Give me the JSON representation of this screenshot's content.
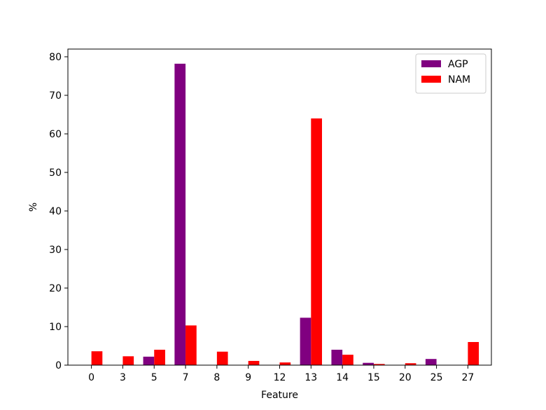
{
  "chart_data": {
    "type": "bar",
    "xlabel": "Feature",
    "ylabel": "%",
    "ylim": [
      0,
      82
    ],
    "yticks": [
      0,
      10,
      20,
      30,
      40,
      50,
      60,
      70,
      80
    ],
    "categories": [
      "0",
      "3",
      "5",
      "7",
      "8",
      "9",
      "12",
      "13",
      "14",
      "15",
      "20",
      "25",
      "27"
    ],
    "series": [
      {
        "name": "AGP",
        "color": "#800080",
        "values": [
          0,
          0,
          2.2,
          78.2,
          0,
          0,
          0,
          12.3,
          4.0,
          0.6,
          0,
          1.6,
          0
        ]
      },
      {
        "name": "NAM",
        "color": "#ff0000",
        "values": [
          3.6,
          2.3,
          4.0,
          10.3,
          3.5,
          1.1,
          0.7,
          64.0,
          2.7,
          0.3,
          0.5,
          0,
          6.0
        ]
      }
    ],
    "legend": "top-right",
    "grid": false
  }
}
